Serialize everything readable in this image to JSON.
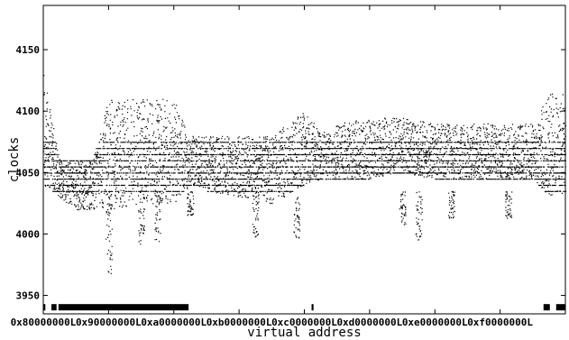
{
  "chart_data": {
    "type": "scatter",
    "title": "",
    "xlabel": "virtual address",
    "ylabel": "clocks",
    "x_tick_labels": [
      "0x80000000L",
      "0x90000000L",
      "0xa0000000L",
      "0xb0000000L",
      "0xc0000000L",
      "0xd0000000L",
      "0xe0000000L",
      "0xf0000000L"
    ],
    "x_ticks": [
      2147483648,
      2415919104,
      2684354560,
      2952790016,
      3221225472,
      3489660928,
      3758096384,
      4026531840
    ],
    "xlim": [
      2147483648,
      4294967296
    ],
    "y_ticks": [
      3950,
      4000,
      4050,
      4100,
      4150
    ],
    "ylim": [
      3935,
      4186
    ],
    "grid": false,
    "legend": "none",
    "marker_color": "#000000",
    "background_color": "#ffffff",
    "band_profile": {
      "description_x": [
        "0x80000000L",
        "0x84000000L",
        "0x88000000L",
        "0x8c000000L",
        "0x90000000L",
        "0x98000000L",
        "0xa0000000L",
        "0xa4000000L",
        "0xa8000000L",
        "0xb0000000L",
        "0xb8000000L",
        "0xc0000000L",
        "0xc4000000L",
        "0xc8000000L",
        "0xd0000000L",
        "0xd8000000L",
        "0xe0000000L",
        "0xe8000000L",
        "0xf0000000L",
        "0xf8000000L",
        "0xfc000000L",
        "0xffffffffL"
      ],
      "x": [
        2147483648,
        2214592512,
        2281701376,
        2348810240,
        2415919104,
        2550136832,
        2684354560,
        2751463424,
        2818572288,
        2952790016,
        3087007744,
        3221225472,
        3288334336,
        3355443200,
        3489660928,
        3623878656,
        3758096384,
        3892314112,
        4026531840,
        4160749568,
        4227858432,
        4294967295
      ],
      "low": [
        4040,
        4030,
        4020,
        4020,
        4020,
        4025,
        4025,
        4040,
        4035,
        4030,
        4025,
        4040,
        4045,
        4045,
        4045,
        4050,
        4045,
        4045,
        4045,
        4045,
        4030,
        4030
      ],
      "high": [
        4130,
        4060,
        4060,
        4060,
        4110,
        4110,
        4110,
        4080,
        4080,
        4080,
        4080,
        4100,
        4085,
        4090,
        4095,
        4095,
        4090,
        4090,
        4090,
        4090,
        4115,
        4115
      ]
    },
    "dense_lines": [
      4035,
      4040,
      4045,
      4050,
      4055,
      4060,
      4065,
      4070,
      4075
    ],
    "spikes": [
      {
        "x": 2415919104,
        "y": 3968
      },
      {
        "x": 2550136832,
        "y": 3992
      },
      {
        "x": 2617245696,
        "y": 3992
      },
      {
        "x": 2751463424,
        "y": 4015
      },
      {
        "x": 3019898880,
        "y": 3998
      },
      {
        "x": 3187671040,
        "y": 3996
      },
      {
        "x": 3623878656,
        "y": 4008
      },
      {
        "x": 3691003904,
        "y": 3993
      },
      {
        "x": 3825205248,
        "y": 4013
      },
      {
        "x": 4060086272,
        "y": 4013
      }
    ],
    "bottom_ticks_y": 3940,
    "bottom_segments": [
      {
        "x0": 2147483648,
        "x1": 2156000000
      },
      {
        "x0": 2181000000,
        "x1": 2202000000
      },
      {
        "x0": 2210000000,
        "x1": 2745000000
      },
      {
        "x0": 3251000000,
        "x1": 3259000000
      },
      {
        "x0": 4205000000,
        "x1": 4231000000
      },
      {
        "x0": 4257000000,
        "x1": 4294967295
      }
    ]
  }
}
